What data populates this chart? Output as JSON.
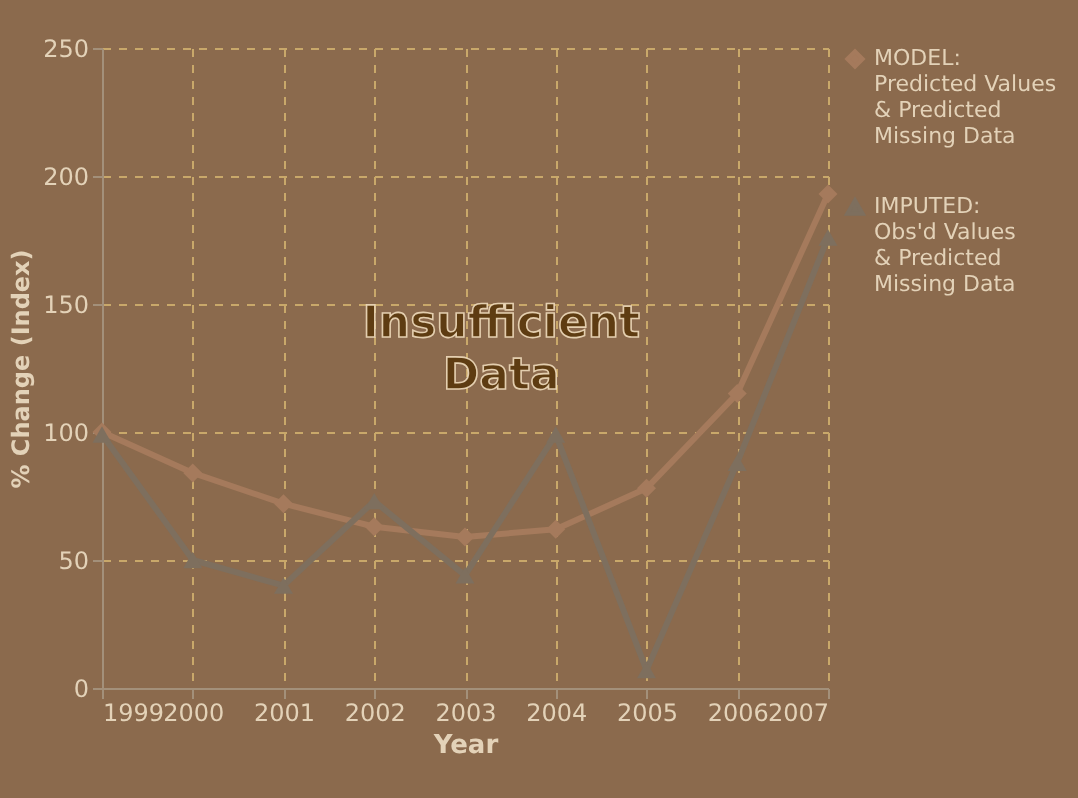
{
  "chart_data": {
    "type": "line",
    "xlabel": "Year",
    "ylabel": "% Change (Index)",
    "x": [
      1999,
      2000,
      2001,
      2002,
      2003,
      2004,
      2005,
      2006,
      2007
    ],
    "xlim": [
      1999,
      2007
    ],
    "xticks": [
      1999,
      2000,
      2001,
      2002,
      2003,
      2004,
      2005,
      2006,
      2007
    ],
    "ylim": [
      0,
      250
    ],
    "yticks": [
      0,
      50,
      100,
      150,
      200,
      250
    ],
    "grid": true,
    "legend": "right",
    "line_style": "solid",
    "annotations": [
      "Insufficient\nData"
    ],
    "series": [
      {
        "name": "MODEL:\nPredicted Values\n& Predicted\nMissing Data",
        "color": "#a57a5c",
        "marker": "diamond",
        "values": [
          100,
          84,
          72,
          63,
          59,
          62,
          78,
          115,
          193
        ]
      },
      {
        "name": "IMPUTED:\nObs'd Values\n& Predicted\nMissing Data",
        "color": "#7e6f5e",
        "marker": "triangle",
        "values": [
          99,
          50,
          40,
          73,
          44,
          99,
          7,
          88,
          176
        ]
      }
    ]
  }
}
